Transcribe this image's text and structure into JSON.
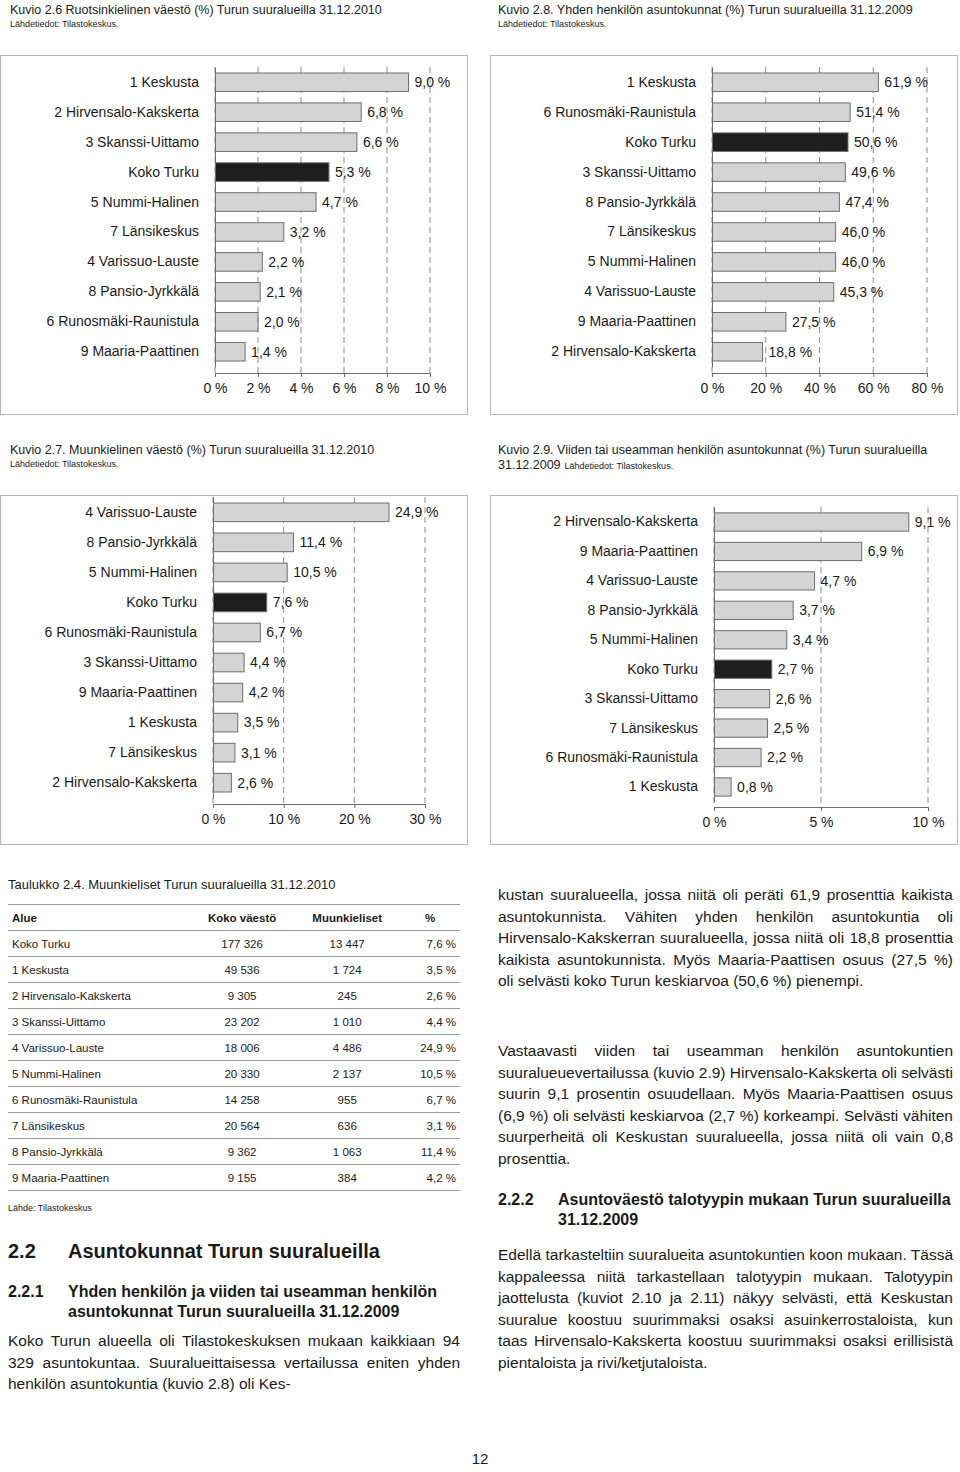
{
  "chart_data": [
    {
      "type": "bar",
      "orientation": "horizontal",
      "title": "Kuvio 2.6 Ruotsinkielinen väestö (%) Turun suuralueilla 31.12.2010",
      "subtitle": "Lähdetiedot: Tilastokeskus.",
      "categories": [
        "1 Keskusta",
        "2 Hirvensalo-Kakskerta",
        "3 Skanssi-Uittamo",
        "Koko Turku",
        "5 Nummi-Halinen",
        "7 Länsikeskus",
        "4 Varissuo-Lauste",
        "8 Pansio-Jyrkkälä",
        "6 Runosmäki-Raunistula",
        "9 Maaria-Paattinen"
      ],
      "values": [
        9.0,
        6.8,
        6.6,
        5.3,
        4.7,
        3.2,
        2.2,
        2.1,
        2.0,
        1.4
      ],
      "value_labels": [
        "9,0 %",
        "6,8 %",
        "6,6 %",
        "5,3 %",
        "4,7 %",
        "3,2 %",
        "2,2 %",
        "2,1 %",
        "2,0 %",
        "1,4 %"
      ],
      "colors": [
        "#d4d4d4",
        "#d4d4d4",
        "#d4d4d4",
        "#1e1e1e",
        "#d4d4d4",
        "#d4d4d4",
        "#d4d4d4",
        "#d4d4d4",
        "#d4d4d4",
        "#d4d4d4"
      ],
      "xlim": [
        0,
        10
      ],
      "xticks": [
        {
          "value": 0,
          "label": "0 %"
        },
        {
          "value": 2,
          "label": "2 %"
        },
        {
          "value": 4,
          "label": "4 %"
        },
        {
          "value": 6,
          "label": "6 %"
        },
        {
          "value": 8,
          "label": "8 %"
        },
        {
          "value": 10,
          "label": "10 %"
        }
      ],
      "grid": true,
      "data_labels": true
    },
    {
      "type": "bar",
      "orientation": "horizontal",
      "title": "Kuvio 2.8. Yhden henkilön asuntokunnat (%) Turun suuralueilla 31.12.2009",
      "subtitle": "Lähdetiedot: Tilastokeskus.",
      "categories": [
        "1 Keskusta",
        "6 Runosmäki-Raunistula",
        "Koko Turku",
        "3 Skanssi-Uittamo",
        "8 Pansio-Jyrkkälä",
        "7 Länsikeskus",
        "5 Nummi-Halinen",
        "4 Varissuo-Lauste",
        "9 Maaria-Paattinen",
        "2 Hirvensalo-Kakskerta"
      ],
      "values": [
        61.9,
        51.4,
        50.6,
        49.6,
        47.4,
        46.0,
        46.0,
        45.3,
        27.5,
        18.8
      ],
      "value_labels": [
        "61,9 %",
        "51,4 %",
        "50,6 %",
        "49,6 %",
        "47,4 %",
        "46,0 %",
        "46,0 %",
        "45,3 %",
        "27,5 %",
        "18,8 %"
      ],
      "colors": [
        "#d4d4d4",
        "#d4d4d4",
        "#1e1e1e",
        "#d4d4d4",
        "#d4d4d4",
        "#d4d4d4",
        "#d4d4d4",
        "#d4d4d4",
        "#d4d4d4",
        "#d4d4d4"
      ],
      "xlim": [
        0,
        80
      ],
      "xticks": [
        {
          "value": 0,
          "label": "0 %"
        },
        {
          "value": 20,
          "label": "20 %"
        },
        {
          "value": 40,
          "label": "40 %"
        },
        {
          "value": 60,
          "label": "60 %"
        },
        {
          "value": 80,
          "label": "80 %"
        }
      ],
      "grid": true,
      "data_labels": true
    },
    {
      "type": "bar",
      "orientation": "horizontal",
      "title": "Kuvio 2.7. Muunkielinen väestö (%) Turun suuralueilla 31.12.2010",
      "subtitle": "Lähdetiedot: Tilastokeskus.",
      "categories": [
        "4 Varissuo-Lauste",
        "8 Pansio-Jyrkkälä",
        "5 Nummi-Halinen",
        "Koko Turku",
        "6 Runosmäki-Raunistula",
        "3 Skanssi-Uittamo",
        "9 Maaria-Paattinen",
        "1 Keskusta",
        "7 Länsikeskus",
        "2 Hirvensalo-Kakskerta"
      ],
      "values": [
        24.9,
        11.4,
        10.5,
        7.6,
        6.7,
        4.4,
        4.2,
        3.5,
        3.1,
        2.6
      ],
      "value_labels": [
        "24,9 %",
        "11,4 %",
        "10,5 %",
        "7,6 %",
        "6,7 %",
        "4,4 %",
        "4,2 %",
        "3,5 %",
        "3,1 %",
        "2,6 %"
      ],
      "colors": [
        "#d4d4d4",
        "#d4d4d4",
        "#d4d4d4",
        "#1e1e1e",
        "#d4d4d4",
        "#d4d4d4",
        "#d4d4d4",
        "#d4d4d4",
        "#d4d4d4",
        "#d4d4d4"
      ],
      "xlim": [
        0,
        30
      ],
      "xticks": [
        {
          "value": 0,
          "label": "0 %"
        },
        {
          "value": 10,
          "label": "10 %"
        },
        {
          "value": 20,
          "label": "20 %"
        },
        {
          "value": 30,
          "label": "30 %"
        }
      ],
      "grid": true,
      "data_labels": true
    },
    {
      "type": "bar",
      "orientation": "horizontal",
      "title": "Kuvio 2.9. Viiden tai useamman henkilön asuntokunnat (%) Turun suuralueilla 31.12.2009",
      "subtitle": "Lähdetiedot: Tilastokeskus.",
      "categories": [
        "2 Hirvensalo-Kakskerta",
        "9 Maaria-Paattinen",
        "4 Varissuo-Lauste",
        "8 Pansio-Jyrkkälä",
        "5 Nummi-Halinen",
        "Koko Turku",
        "3 Skanssi-Uittamo",
        "7 Länsikeskus",
        "6 Runosmäki-Raunistula",
        "1 Keskusta"
      ],
      "values": [
        9.1,
        6.9,
        4.7,
        3.7,
        3.4,
        2.7,
        2.6,
        2.5,
        2.2,
        0.8
      ],
      "value_labels": [
        "9,1 %",
        "6,9 %",
        "4,7 %",
        "3,7 %",
        "3,4 %",
        "2,7 %",
        "2,6 %",
        "2,5 %",
        "2,2 %",
        "0,8 %"
      ],
      "colors": [
        "#d4d4d4",
        "#d4d4d4",
        "#d4d4d4",
        "#d4d4d4",
        "#d4d4d4",
        "#1e1e1e",
        "#d4d4d4",
        "#d4d4d4",
        "#d4d4d4",
        "#d4d4d4"
      ],
      "xlim": [
        0,
        10
      ],
      "xticks": [
        {
          "value": 0,
          "label": "0 %"
        },
        {
          "value": 5,
          "label": "5 %"
        },
        {
          "value": 10,
          "label": "10 %"
        }
      ],
      "grid": true,
      "data_labels": true
    }
  ],
  "document": {
    "table": {
      "title": "Taulukko 2.4. Muunkieliset Turun suuralueilla 31.12.2010",
      "header": [
        "Alue",
        "Koko väestö",
        "Muunkieliset",
        "%"
      ],
      "rows": [
        [
          "Koko Turku",
          "177 326",
          "13 447",
          "7,6 %"
        ],
        [
          "1 Keskusta",
          "49 536",
          "1 724",
          "3,5 %"
        ],
        [
          "2 Hirvensalo-Kakskerta",
          "9 305",
          "245",
          "2,6 %"
        ],
        [
          "3 Skanssi-Uittamo",
          "23 202",
          "1 010",
          "4,4 %"
        ],
        [
          "4 Varissuo-Lauste",
          "18 006",
          "4 486",
          "24,9 %"
        ],
        [
          "5 Nummi-Halinen",
          "20 330",
          "2 137",
          "10,5 %"
        ],
        [
          "6 Runosmäki-Raunistula",
          "14 258",
          "955",
          "6,7 %"
        ],
        [
          "7 Länsikeskus",
          "20 564",
          "636",
          "3,1 %"
        ],
        [
          "8 Pansio-Jyrkkälä",
          "9 362",
          "1 063",
          "11,4 %"
        ],
        [
          "9 Maaria-Paattinen",
          "9 155",
          "384",
          "4,2 %"
        ]
      ],
      "source": "Lähde: Tilastokeskus"
    },
    "heading": {
      "number": "2.2",
      "text": "Asuntokunnat Turun suuralueilla"
    },
    "subheading_1": {
      "number": "2.2.1",
      "text": "Yhden henkilön ja viiden tai useamman henkilön asuntokunnat Turun suuralueilla 31.12.2009"
    },
    "paragraph_1": "Koko Turun alueella oli Tilastokeskuksen mukaan kaikkiaan 94 329 asuntokuntaa. Suuralueittaisessa vertailussa eniten yhden henkilön asuntokuntia (kuvio 2.8) oli Kes-",
    "paragraph_2": "kustan suuralueella, jossa niitä oli peräti 61,9 prosenttia kaikista asuntokunnista. Vähiten yhden henkilön asuntokuntia oli Hirvensalo-Kakskerran suuralueella, jossa niitä oli 18,8 prosenttia kaikista asuntokunnista. Myös Maaria-Paattisen osuus (27,5 %) oli selvästi koko Turun keskiarvoa (50,6 %) pienempi.",
    "paragraph_3": "Vastaavasti viiden tai useamman henkilön asuntokuntien suuralueuevertailussa (kuvio 2.9) Hirvensalo-Kakskerta oli selvästi suurin 9,1 prosentin osuudellaan. Myös Maaria-Paattisen osuus (6,9 %) oli selvästi keskiarvoa (2,7 %) korkeampi. Selvästi vähiten suurperheitä oli Keskustan suuralueella, jossa niitä oli vain 0,8 prosenttia.",
    "subheading_2": {
      "number": "2.2.2",
      "text": "Asuntoväestö talotyypin mukaan Turun suuralueilla 31.12.2009"
    },
    "paragraph_4": "Edellä tarkasteltiin suuralueita asuntokuntien koon mukaan. Tässä kappaleessa niitä tarkastellaan talotyypin mukaan. Talotyypin jaottelusta (kuviot 2.10 ja 2.11) näkyy selvästi, että Keskustan suuralue koostuu suurimmaksi osaksi asuinkerrostaloista, kun taas Hirvensalo-Kakskerta koostuu suurimmaksi osaksi erillisistä pientaloista ja rivi/ketjutaloista.",
    "page_number": "12"
  }
}
